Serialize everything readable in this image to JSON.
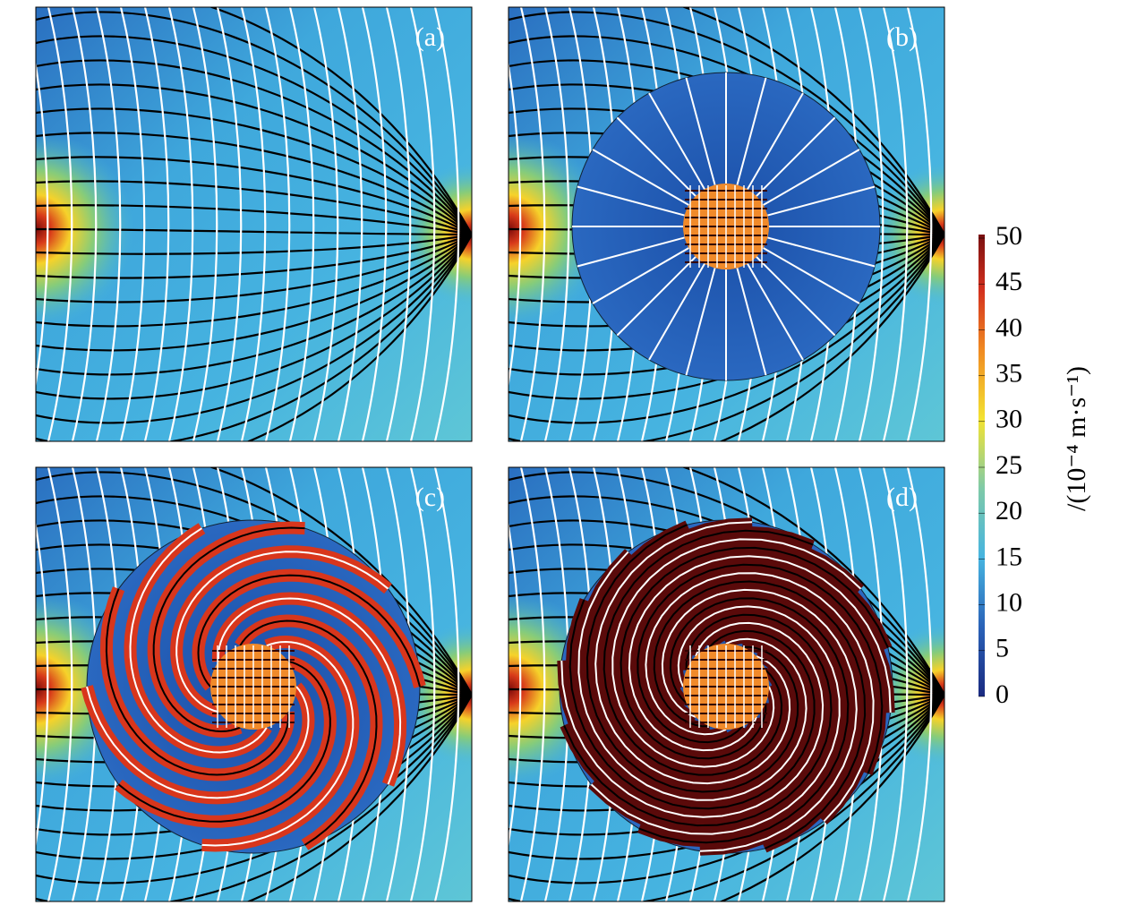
{
  "panels": [
    {
      "label": "(a)"
    },
    {
      "label": "(b)"
    },
    {
      "label": "(c)"
    },
    {
      "label": "(d)"
    }
  ],
  "colorbar": {
    "lim": [
      0,
      50
    ],
    "ticks": [
      0,
      5,
      10,
      15,
      20,
      25,
      30,
      35,
      40,
      45,
      50
    ],
    "label": "/(10⁻⁴ m·s⁻¹)"
  }
}
